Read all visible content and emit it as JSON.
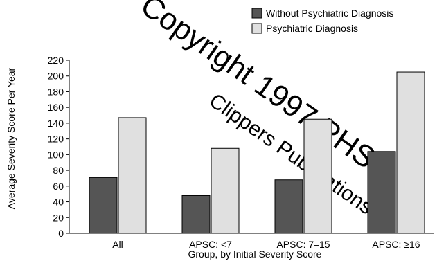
{
  "chart_data": {
    "type": "bar",
    "categories": [
      "All",
      "APSC: <7",
      "APSC: 7–15",
      "APSC: ≥16"
    ],
    "series": [
      {
        "name": "Without Psychiatric Diagnosis",
        "values": [
          71,
          48,
          68,
          104
        ],
        "color": "#555555"
      },
      {
        "name": "Psychiatric Diagnosis",
        "values": [
          147,
          108,
          145,
          205
        ],
        "color": "#e0e0e0"
      }
    ],
    "title": "",
    "xlabel": "Group, by Initial Severity Score",
    "ylabel": "Average Severity Score Per Year",
    "ylim": [
      0,
      220
    ],
    "yticks": [
      0,
      20,
      40,
      60,
      80,
      100,
      120,
      140,
      160,
      180,
      200,
      220
    ],
    "grid": false,
    "legend_position": "top-right"
  },
  "watermark": {
    "text_line1": "Copyright 1997 PHS",
    "text_line2": "Clippers Publications"
  }
}
